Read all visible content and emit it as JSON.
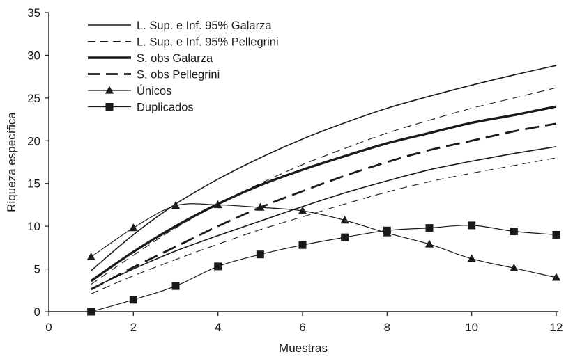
{
  "chart_data": {
    "type": "line",
    "title": "",
    "xlabel": "Muestras",
    "ylabel": "Riqueza específica",
    "xlim": [
      0,
      12
    ],
    "ylim": [
      0,
      35
    ],
    "x_ticks": [
      0,
      2,
      4,
      6,
      8,
      10,
      12
    ],
    "y_ticks": [
      0,
      5,
      10,
      15,
      20,
      25,
      30,
      35
    ],
    "grid": false,
    "legend_position": "top-left",
    "x": [
      1,
      2,
      3,
      4,
      5,
      6,
      7,
      8,
      9,
      10,
      11,
      12
    ],
    "series": [
      {
        "name": "L. Sup. e Inf. 95% Galarza",
        "style": "thin-solid",
        "color": "#1a1a1a",
        "bound": "upper",
        "values": [
          4.8,
          9.0,
          12.6,
          15.5,
          18.0,
          20.2,
          22.1,
          23.8,
          25.2,
          26.5,
          27.7,
          28.8
        ]
      },
      {
        "name": "L. Sup. e Inf. 95% Galarza",
        "style": "thin-solid",
        "color": "#1a1a1a",
        "bound": "lower",
        "values": [
          2.7,
          5.0,
          7.1,
          8.9,
          10.6,
          12.3,
          13.9,
          15.3,
          16.6,
          17.6,
          18.5,
          19.3
        ]
      },
      {
        "name": "L. Sup. e Inf. 95% Pellegrini",
        "style": "thin-dashed",
        "color": "#1a1a1a",
        "bound": "upper",
        "values": [
          3.2,
          6.6,
          9.8,
          12.6,
          15.0,
          17.2,
          19.1,
          20.9,
          22.4,
          23.8,
          25.0,
          26.2
        ]
      },
      {
        "name": "L. Sup. e Inf. 95% Pellegrini",
        "style": "thin-dashed",
        "color": "#1a1a1a",
        "bound": "lower",
        "values": [
          2.1,
          4.2,
          6.1,
          7.9,
          9.6,
          11.1,
          12.6,
          14.0,
          15.2,
          16.2,
          17.1,
          18.0
        ]
      },
      {
        "name": "S. obs Galarza",
        "style": "thick-solid",
        "color": "#1a1a1a",
        "values": [
          3.6,
          7.0,
          10.0,
          12.6,
          14.8,
          16.6,
          18.2,
          19.7,
          20.9,
          22.1,
          23.0,
          24.0
        ]
      },
      {
        "name": "S. obs Pellegrini",
        "style": "thick-dashed",
        "color": "#1a1a1a",
        "values": [
          2.6,
          5.2,
          7.6,
          10.0,
          12.2,
          14.1,
          15.9,
          17.5,
          18.9,
          20.0,
          21.1,
          22.0
        ]
      },
      {
        "name": "Únicos",
        "style": "triangle-markers",
        "color": "#1a1a1a",
        "values": [
          6.4,
          9.8,
          12.4,
          12.5,
          12.2,
          11.8,
          10.7,
          9.2,
          7.9,
          6.2,
          5.1,
          4.0
        ]
      },
      {
        "name": "Duplicados",
        "style": "square-markers",
        "color": "#1a1a1a",
        "values": [
          0.0,
          1.4,
          3.0,
          5.3,
          6.7,
          7.8,
          8.7,
          9.5,
          9.8,
          10.1,
          9.4,
          9.0
        ]
      }
    ],
    "legend": [
      {
        "label": "L. Sup. e Inf. 95% Galarza",
        "style": "thin-solid"
      },
      {
        "label": "L. Sup. e Inf. 95% Pellegrini",
        "style": "thin-dashed"
      },
      {
        "label": "S. obs Galarza",
        "style": "thick-solid"
      },
      {
        "label": "S. obs Pellegrini",
        "style": "thick-dashed"
      },
      {
        "label": "Únicos",
        "style": "triangle-markers"
      },
      {
        "label": "Duplicados",
        "style": "square-markers"
      }
    ]
  }
}
